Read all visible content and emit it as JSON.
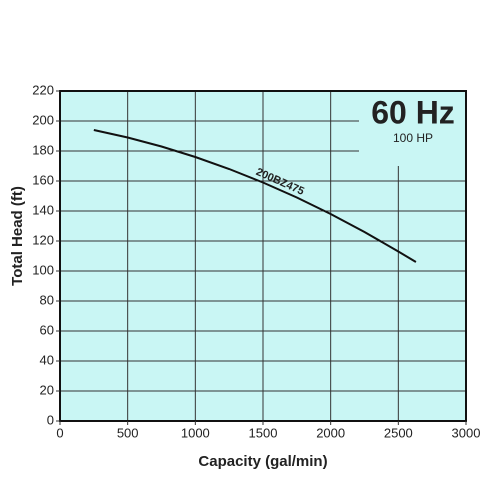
{
  "chart_data": {
    "type": "line",
    "x_label": "Capacity (gal/min)",
    "y_label": "Total Head (ft)",
    "annotations": [
      "60 Hz",
      "100 HP"
    ],
    "x": [
      250,
      500,
      750,
      1000,
      1250,
      1500,
      1750,
      2000,
      2250,
      2500,
      2630
    ],
    "series": [
      {
        "name": "200BZ475",
        "color": "#111111",
        "values": [
          194,
          189,
          183,
          176,
          168,
          159,
          149,
          138,
          126,
          113,
          106
        ]
      }
    ],
    "xlim": [
      0,
      3000
    ],
    "xticks": [
      0,
      500,
      1000,
      1500,
      2000,
      2500,
      3000
    ],
    "ylim": [
      0,
      220
    ],
    "yticks": [
      0,
      20,
      40,
      60,
      80,
      100,
      120,
      140,
      160,
      180,
      200,
      220
    ],
    "grid": true,
    "background": "#c9f6f4"
  }
}
